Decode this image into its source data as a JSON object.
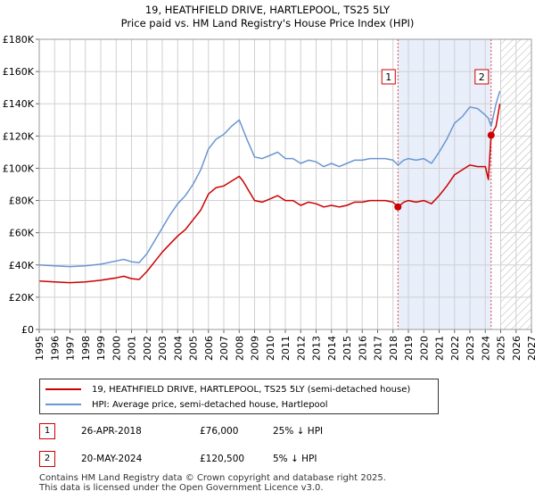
{
  "title_line1": "19, HEATHFIELD DRIVE, HARTLEPOOL, TS25 5LY",
  "title_line2": "Price paid vs. HM Land Registry's House Price Index (HPI)",
  "legend": {
    "red_label": "19, HEATHFIELD DRIVE, HARTLEPOOL, TS25 5LY (semi-detached house)",
    "blue_label": "HPI: Average price, semi-detached house, Hartlepool"
  },
  "sales": [
    {
      "num": "1",
      "date": "26-APR-2018",
      "price": "£76,000",
      "hpi": "25% ↓ HPI"
    },
    {
      "num": "2",
      "date": "20-MAY-2024",
      "price": "£120,500",
      "hpi": "5% ↓ HPI"
    }
  ],
  "footer_line1": "Contains HM Land Registry data © Crown copyright and database right 2025.",
  "footer_line2": "This data is licensed under the Open Government Licence v3.0.",
  "colors": {
    "red": "#cc0000",
    "blue": "#6a96d2",
    "shade": "#e8eefa",
    "grid": "#d0d0d0",
    "hatch": "#b0b0b0"
  },
  "chart_data": {
    "type": "line",
    "title": "19, HEATHFIELD DRIVE, HARTLEPOOL, TS25 5LY — Price paid vs. HM Land Registry's House Price Index (HPI)",
    "xlabel": "",
    "ylabel": "",
    "xlim": [
      1995,
      2027
    ],
    "ylim": [
      0,
      180000
    ],
    "x_ticks": [
      1995,
      1996,
      1997,
      1998,
      1999,
      2000,
      2001,
      2002,
      2003,
      2004,
      2005,
      2006,
      2007,
      2008,
      2009,
      2010,
      2011,
      2012,
      2013,
      2014,
      2015,
      2016,
      2017,
      2018,
      2019,
      2020,
      2021,
      2022,
      2023,
      2024,
      2025,
      2026,
      2027
    ],
    "y_ticks": [
      0,
      20000,
      40000,
      60000,
      80000,
      100000,
      120000,
      140000,
      160000,
      180000
    ],
    "y_tick_labels": [
      "£0",
      "£20K",
      "£40K",
      "£60K",
      "£80K",
      "£100K",
      "£120K",
      "£140K",
      "£160K",
      "£180K"
    ],
    "grid": true,
    "shaded_span": [
      2018.32,
      2024.38
    ],
    "future_hatch_from": 2025.0,
    "series": [
      {
        "name": "19, HEATHFIELD DRIVE, HARTLEPOOL, TS25 5LY (semi-detached house)",
        "color": "#cc0000",
        "x": [
          1995.0,
          1996.0,
          1997.0,
          1998.0,
          1999.0,
          2000.0,
          2000.5,
          2001.0,
          2001.5,
          2002.0,
          2002.5,
          2003.0,
          2003.5,
          2004.0,
          2004.5,
          2005.0,
          2005.5,
          2006.0,
          2006.5,
          2007.0,
          2007.5,
          2008.0,
          2008.25,
          2008.5,
          2009.0,
          2009.5,
          2010.0,
          2010.5,
          2011.0,
          2011.5,
          2012.0,
          2012.5,
          2013.0,
          2013.5,
          2014.0,
          2014.5,
          2015.0,
          2015.5,
          2016.0,
          2016.5,
          2017.0,
          2017.5,
          2018.0,
          2018.32,
          2018.7,
          2019.0,
          2019.5,
          2020.0,
          2020.5,
          2021.0,
          2021.5,
          2022.0,
          2022.5,
          2023.0,
          2023.5,
          2024.0,
          2024.2,
          2024.38,
          2024.7,
          2024.95
        ],
        "y": [
          30000,
          29500,
          29000,
          29500,
          30500,
          32000,
          33000,
          31500,
          31000,
          36000,
          42000,
          48000,
          53000,
          58000,
          62000,
          68000,
          74000,
          84000,
          88000,
          89000,
          92000,
          95000,
          92000,
          88000,
          80000,
          79000,
          81000,
          83000,
          80000,
          80000,
          77000,
          79000,
          78000,
          76000,
          77000,
          76000,
          77000,
          79000,
          79000,
          80000,
          80000,
          80000,
          79000,
          76000,
          79000,
          80000,
          79000,
          80000,
          78000,
          83000,
          89000,
          96000,
          99000,
          102000,
          101000,
          101000,
          93000,
          120500,
          126000,
          140000
        ]
      },
      {
        "name": "HPI: Average price, semi-detached house, Hartlepool",
        "color": "#6a96d2",
        "x": [
          1995.0,
          1996.0,
          1997.0,
          1998.0,
          1999.0,
          2000.0,
          2000.5,
          2001.0,
          2001.5,
          2002.0,
          2002.5,
          2003.0,
          2003.5,
          2004.0,
          2004.5,
          2005.0,
          2005.5,
          2006.0,
          2006.5,
          2007.0,
          2007.5,
          2008.0,
          2008.25,
          2008.5,
          2009.0,
          2009.5,
          2010.0,
          2010.5,
          2011.0,
          2011.5,
          2012.0,
          2012.5,
          2013.0,
          2013.5,
          2014.0,
          2014.5,
          2015.0,
          2015.5,
          2016.0,
          2016.5,
          2017.0,
          2017.5,
          2018.0,
          2018.32,
          2018.7,
          2019.0,
          2019.5,
          2020.0,
          2020.5,
          2021.0,
          2021.5,
          2022.0,
          2022.5,
          2023.0,
          2023.5,
          2024.0,
          2024.2,
          2024.38,
          2024.7,
          2024.95
        ],
        "y": [
          40000,
          39500,
          39000,
          39500,
          40500,
          42500,
          43500,
          42000,
          41500,
          47000,
          55000,
          63000,
          71000,
          78000,
          83000,
          90000,
          99000,
          112000,
          118000,
          121000,
          126000,
          130000,
          124000,
          118000,
          107000,
          106000,
          108000,
          110000,
          106000,
          106000,
          103000,
          105000,
          104000,
          101000,
          103000,
          101000,
          103000,
          105000,
          105000,
          106000,
          106000,
          106000,
          105000,
          102000,
          105000,
          106000,
          105000,
          106000,
          103000,
          110000,
          118000,
          128000,
          132000,
          138000,
          137000,
          133000,
          131000,
          126000,
          140000,
          148000
        ]
      }
    ],
    "sale_markers": [
      {
        "label": "1",
        "x": 2018.32,
        "y": 76000
      },
      {
        "label": "2",
        "x": 2024.38,
        "y": 120500
      }
    ]
  }
}
